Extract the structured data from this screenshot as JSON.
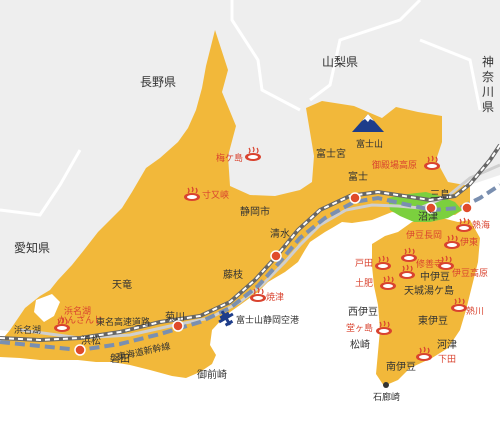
{
  "prefectures": {
    "nagano": "長野県",
    "yamanashi": "山梨県",
    "aichi": "愛知県",
    "kanagawa": [
      "神",
      "奈",
      "川",
      "県"
    ]
  },
  "mountain": {
    "name": "富士山"
  },
  "cities": {
    "fujinomiya": "富士宮",
    "fuji": "富士",
    "mishima": "三島",
    "numazu": "沼津",
    "shizuoka": "静岡市",
    "shimizu": "清水",
    "fujieda": "藤枝",
    "tenryu": "天竜",
    "kikugawa": "菊川",
    "hamamatsu": "浜松",
    "iwata": "磐田",
    "omaezaki": "御前崎",
    "nakaizu": "中伊豆",
    "amagi": "天城湯ケ島",
    "nishiizu": "西伊豆",
    "higashiizu": "東伊豆",
    "matsuzaki": "松崎",
    "kawazu": "河津",
    "minamiizu": "南伊豆",
    "irozaki": "石廊崎",
    "hamanako": "浜名湖"
  },
  "onsen": {
    "umegashima": "梅ケ島",
    "sunmata": "寸又峡",
    "gotemba": "御殿場高原",
    "izunagaoka": "伊豆長岡",
    "shuzenji": "修善寺",
    "toi": "土肥",
    "heda": "戸田",
    "ito": "伊東",
    "izukogen": "伊豆高原",
    "atami": "熱海",
    "atagawa": "熱川",
    "shimoda": "下田",
    "dogashima": "堂ヶ島",
    "yaizu": "焼津",
    "kanzanji": [
      "浜名湖",
      "かんざんじ"
    ]
  },
  "routes": {
    "tomei": "東名高速道路",
    "shinkansen": "東海道新幹線"
  },
  "airport": {
    "name": "富士山静岡空港"
  },
  "colors": {
    "land": "#f2b83a",
    "sea": "#ffffff",
    "outside": "#eeeeee",
    "green": "#7bd03e",
    "onsen_red": "#d9432f",
    "highway": "#666666",
    "rail_dash": "#ffffff",
    "station": "#e04b2a",
    "airport": "#1e3d8a"
  }
}
